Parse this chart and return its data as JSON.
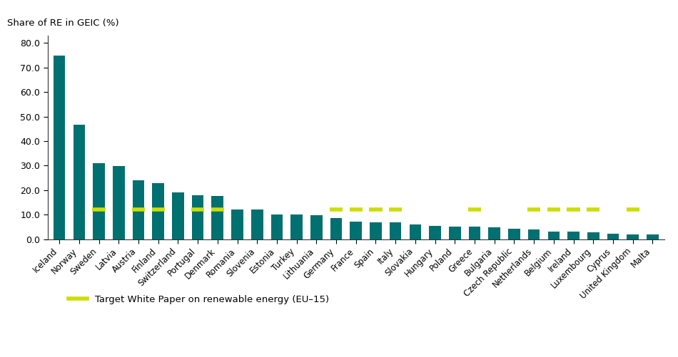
{
  "categories": [
    "Iceland",
    "Norway",
    "Sweden",
    "Latvia",
    "Austria",
    "Finland",
    "Switzerland",
    "Portugal",
    "Denmark",
    "Romania",
    "Slovenia",
    "Estonia",
    "Turkey",
    "Lithuania",
    "Germany",
    "France",
    "Spain",
    "Italy",
    "Slovakia",
    "Hungary",
    "Poland",
    "Greece",
    "Bulgaria",
    "Czech Republic",
    "Netherlands",
    "Belgium",
    "Ireland",
    "Luxembourg",
    "Cyprus",
    "United Kingdom",
    "Malta"
  ],
  "values": [
    75.0,
    46.7,
    31.0,
    29.9,
    23.9,
    22.9,
    19.0,
    17.9,
    17.5,
    12.0,
    12.0,
    10.2,
    10.1,
    9.8,
    8.6,
    7.1,
    7.0,
    6.9,
    5.9,
    5.4,
    5.2,
    5.0,
    4.8,
    4.4,
    3.9,
    3.2,
    3.0,
    2.7,
    2.2,
    2.0,
    1.9
  ],
  "bar_color": "#007070",
  "target_line_value": 12.0,
  "target_line_color": "#CCDD00",
  "target_line_label": "Target White Paper on renewable energy (EU–15)",
  "top_label": "Share of RE in GEIC (%)",
  "yticks": [
    0.0,
    10.0,
    20.0,
    30.0,
    40.0,
    50.0,
    60.0,
    70.0,
    80.0
  ],
  "ylim": [
    0,
    83
  ],
  "background_color": "#ffffff",
  "eu15_countries": [
    "Sweden",
    "Austria",
    "Finland",
    "Portugal",
    "Denmark",
    "Germany",
    "France",
    "Spain",
    "Italy",
    "Greece",
    "Netherlands",
    "Belgium",
    "Ireland",
    "Luxembourg",
    "United Kingdom"
  ]
}
